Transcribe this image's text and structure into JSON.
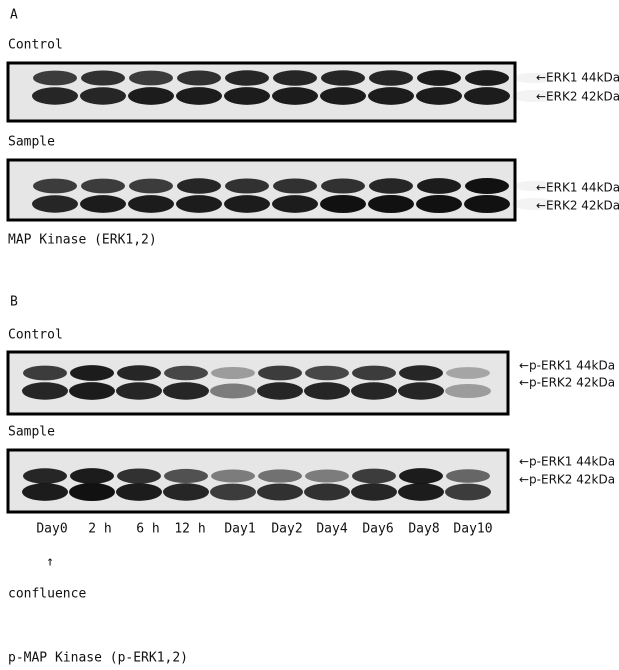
{
  "panel_a": {
    "label": "A",
    "control_label": "Control",
    "sample_label": "Sample",
    "bands": [
      "←ERK1 44kDa",
      "←ERK2 42kDa"
    ],
    "caption": "MAP Kinase (ERK1,2)"
  },
  "panel_b": {
    "label": "B",
    "control_label": "Control",
    "sample_label": "Sample",
    "bands": [
      "←p-ERK1 44kDa",
      "←p-ERK2 42kDa"
    ],
    "lanes": [
      "Day0",
      "2 h",
      "6 h",
      "12 h",
      "Day1",
      "Day2",
      "Day4",
      "Day6",
      "Day8",
      "Day10"
    ],
    "arrow": "↑",
    "arrow_note": "confluence",
    "caption": "p-MAP Kinase (p-ERK1,2)"
  }
}
